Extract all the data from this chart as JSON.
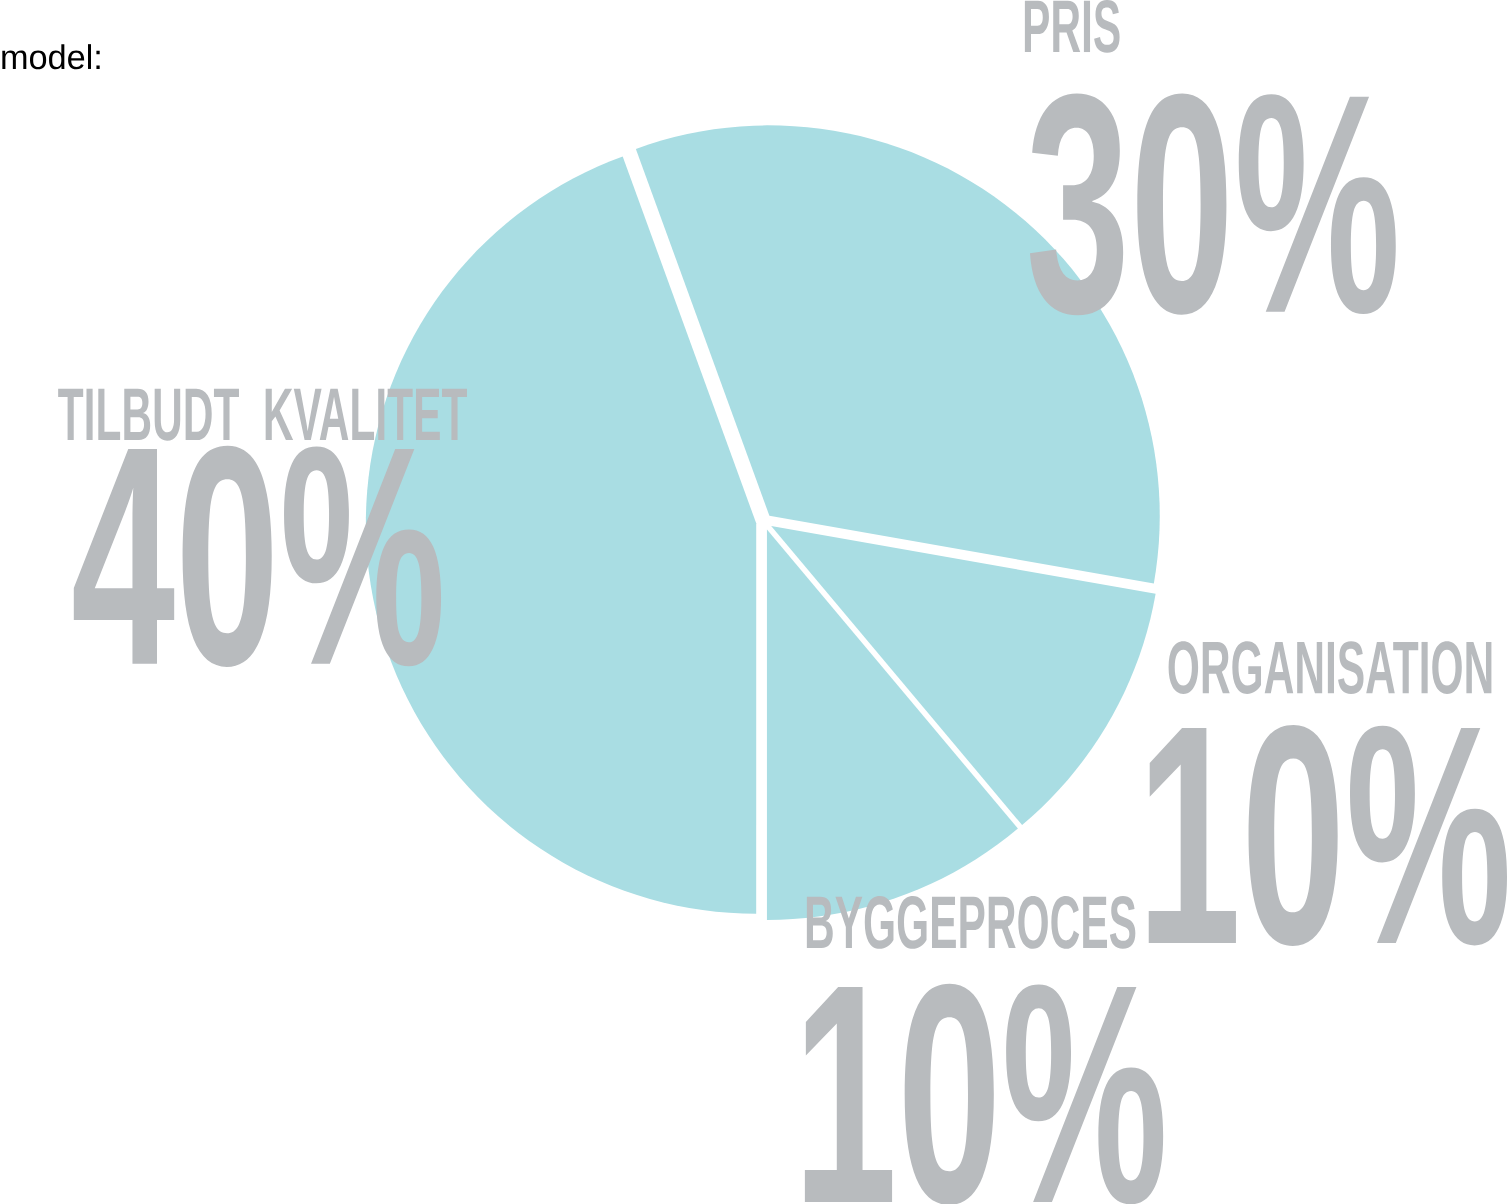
{
  "chart_data": {
    "type": "pie",
    "annotations": [
      "model:"
    ],
    "categories": [
      "PRIS",
      "ORGANISATION",
      "BYGGEPROCES",
      "TILBUDT KVALITET"
    ],
    "values": [
      30,
      10,
      10,
      40
    ],
    "value_labels": [
      "30%",
      "10%",
      "10%",
      "40%"
    ],
    "colors": [
      "#a9dde3",
      "#a9dde3",
      "#a9dde3",
      "#a9dde3"
    ]
  }
}
